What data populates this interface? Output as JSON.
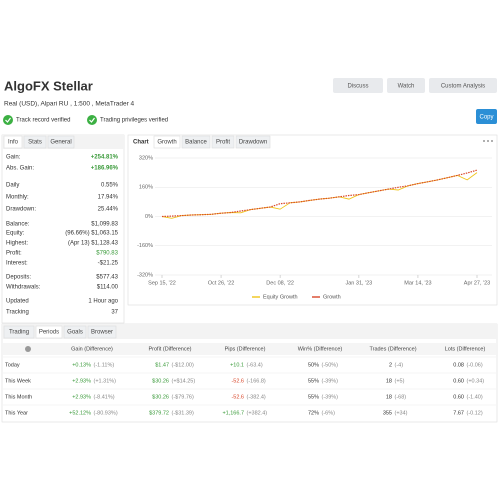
{
  "header": {
    "title": "AlgoFX Stellar",
    "subtitle": "Real (USD), Alpari RU , 1:500 , MetaTrader 4",
    "buttons": [
      "Discuss",
      "Watch",
      "Custom Analysis"
    ],
    "badges": [
      "Track record verified",
      "Trading privileges verified"
    ],
    "copy": "Copy"
  },
  "info": {
    "tabs": [
      "Info",
      "Stats",
      "General"
    ],
    "rows": [
      [
        "Gain:",
        "+254.81%"
      ],
      [
        "Abs. Gain:",
        "+186.96%"
      ],
      [
        "Daily",
        "0.55%"
      ],
      [
        "Monthly:",
        "17.94%"
      ],
      [
        "Drawdown:",
        "25.44%"
      ],
      [
        "Balance:",
        "$1,099.83"
      ],
      [
        "Equity:",
        "(96.66%) $1,063.15"
      ],
      [
        "Highest:",
        "(Apr 13) $1,128.43"
      ],
      [
        "Profit:",
        "$790.83"
      ],
      [
        "Interest:",
        "-$21.25"
      ],
      [
        "Deposits:",
        "$577.43"
      ],
      [
        "Withdrawals:",
        "$114.00"
      ],
      [
        "Updated",
        "1 Hour ago"
      ],
      [
        "Tracking",
        "37"
      ]
    ]
  },
  "chart": {
    "tabs": [
      "Chart",
      "Growth",
      "Balance",
      "Profit",
      "Drawdown"
    ],
    "chart_data": {
      "type": "line",
      "categories": [
        "Sep 15, '22",
        null,
        null,
        null,
        null,
        null,
        "Oct 26, '22",
        null,
        null,
        null,
        null,
        null,
        "Dec 08, '22",
        null,
        null,
        null,
        null,
        null,
        null,
        null,
        "Jan 31, '23",
        null,
        null,
        null,
        null,
        null,
        "Mar 14, '23",
        null,
        null,
        null,
        null,
        null,
        "Apr 27, '23"
      ],
      "series": [
        {
          "name": "Equity Growth",
          "color": "#f0c419",
          "values": [
            0,
            -10,
            5,
            8,
            10,
            12,
            18,
            22,
            20,
            38,
            45,
            52,
            40,
            75,
            80,
            88,
            95,
            100,
            108,
            95,
            120,
            130,
            140,
            150,
            145,
            168,
            180,
            190,
            200,
            212,
            225,
            200,
            240
          ]
        },
        {
          "name": "Growth",
          "color": "#d9482b",
          "values": [
            0,
            2,
            5,
            8,
            10,
            12,
            18,
            22,
            30,
            38,
            45,
            52,
            70,
            75,
            80,
            88,
            95,
            100,
            108,
            115,
            120,
            130,
            140,
            150,
            160,
            168,
            180,
            190,
            200,
            212,
            225,
            238,
            254
          ]
        }
      ],
      "ylim": [
        -320,
        320
      ],
      "yticks": [
        {
          "value": 320,
          "label": "320%"
        },
        {
          "value": 160,
          "label": "160%"
        },
        {
          "value": 0,
          "label": "0%"
        },
        {
          "value": -160,
          "label": "-160%"
        },
        {
          "value": -320,
          "label": "-320%"
        }
      ],
      "grid": true
    }
  },
  "periods": {
    "tabs": [
      "Trading",
      "Periods",
      "Goals",
      "Browser"
    ],
    "columns": [
      "Gain (Difference)",
      "Profit (Difference)",
      "Pips (Difference)",
      "Win% (Difference)",
      "Trades (Difference)",
      "Lots (Difference)"
    ],
    "rows": [
      {
        "label": "Today",
        "cells": [
          [
            "+0.13%",
            "(-1.11%)"
          ],
          [
            "$1.47",
            "(-$12.00)"
          ],
          [
            "+10.1",
            "(-63.4)"
          ],
          [
            "50%",
            "(-50%)"
          ],
          [
            "2",
            "(-4)"
          ],
          [
            "0.08",
            "(-0.06)"
          ]
        ]
      },
      {
        "label": "This Week",
        "cells": [
          [
            "+2.93%",
            "(+1.31%)"
          ],
          [
            "$30.26",
            "(+$14.25)"
          ],
          [
            "-52.6",
            "(-166.8)"
          ],
          [
            "55%",
            "(-39%)"
          ],
          [
            "18",
            "(+5)"
          ],
          [
            "0.60",
            "(+0.34)"
          ]
        ]
      },
      {
        "label": "This Month",
        "cells": [
          [
            "+2.93%",
            "(-8.41%)"
          ],
          [
            "$30.26",
            "(-$79.76)"
          ],
          [
            "-52.6",
            "(-382.4)"
          ],
          [
            "55%",
            "(-39%)"
          ],
          [
            "18",
            "(-68)"
          ],
          [
            "0.60",
            "(-1.40)"
          ]
        ]
      },
      {
        "label": "This Year",
        "cells": [
          [
            "+52.12%",
            "(-80.93%)"
          ],
          [
            "$379.72",
            "(-$31.39)"
          ],
          [
            "+1,166.7",
            "(+382.4)"
          ],
          [
            "72%",
            "(-6%)"
          ],
          [
            "355",
            "(+34)"
          ],
          [
            "7.67",
            "(-0.12)"
          ]
        ]
      }
    ]
  }
}
